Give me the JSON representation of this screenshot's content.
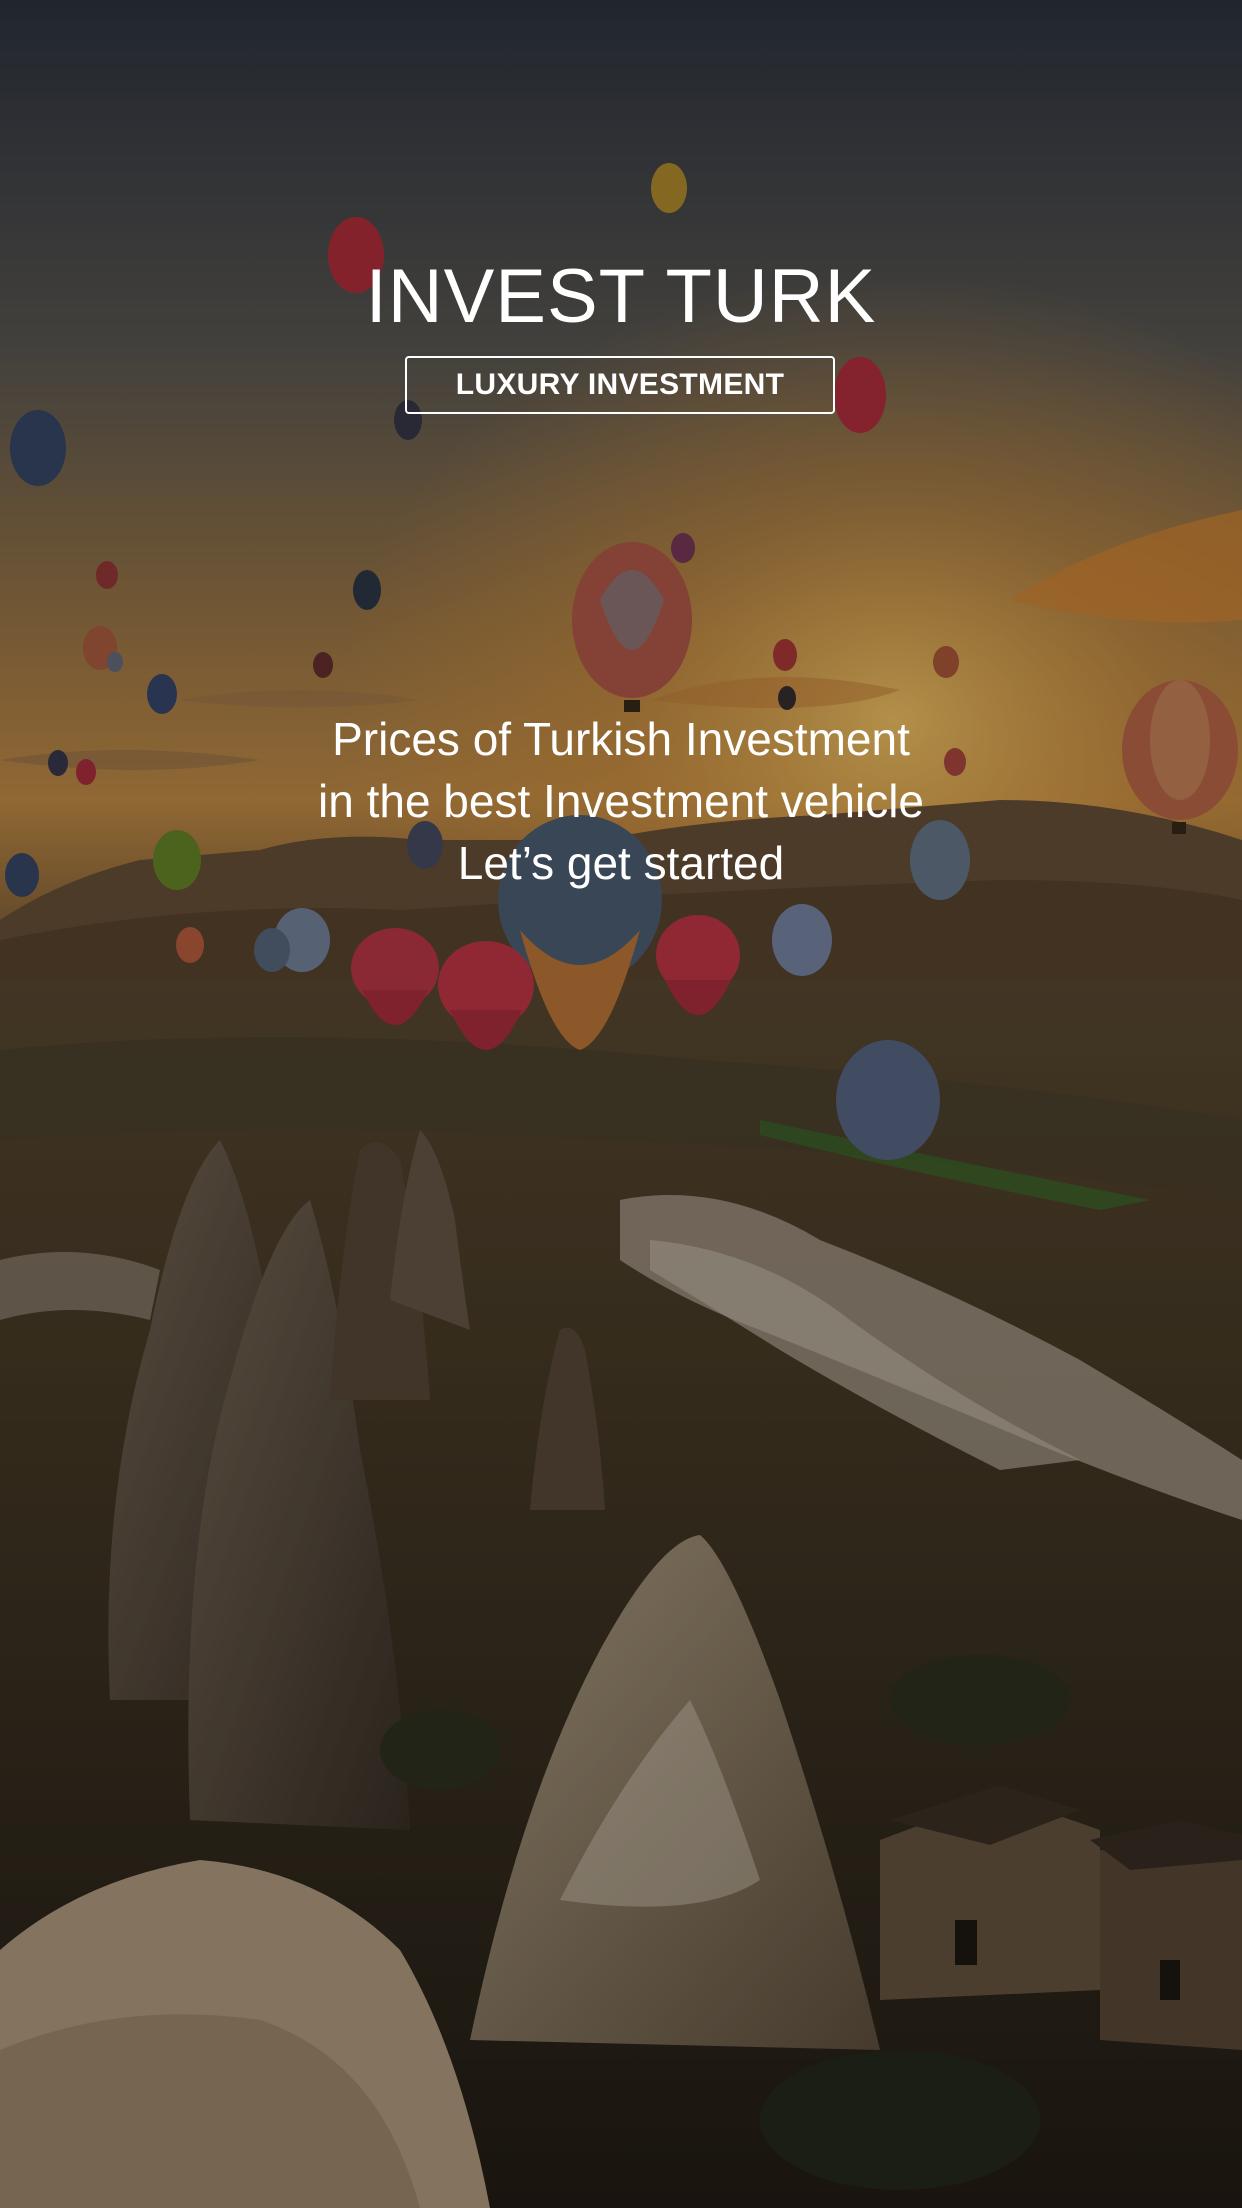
{
  "app": {
    "title": "INVEST TURK",
    "tagline": "LUXURY INVESTMENT"
  },
  "hero": {
    "lines": [
      "Prices of Turkish Investment",
      "in the best Investment vehicle",
      "Let’s get started"
    ]
  },
  "background": {
    "scene": "hot-air-balloons-cappadocia",
    "colors": {
      "sky_top": "#3a4150",
      "sky_mid": "#8a6a45",
      "horizon_glow": "#e0a040",
      "ground": "#3a3222"
    }
  }
}
